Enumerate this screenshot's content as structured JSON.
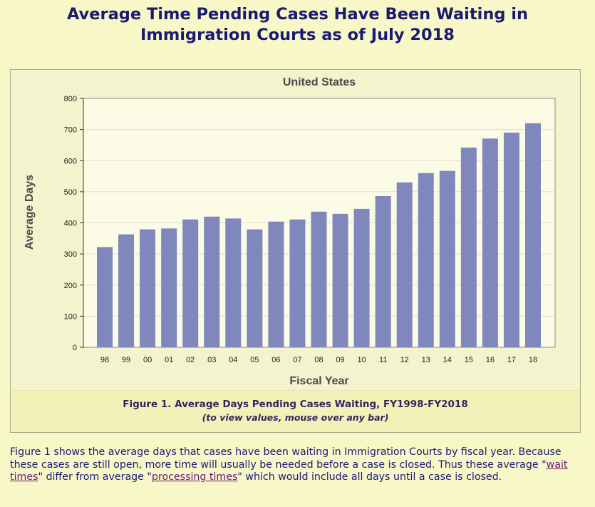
{
  "page": {
    "title_line1": "Average Time Pending Cases Have Been Waiting in",
    "title_line2": "Immigration Courts as of July 2018"
  },
  "caption": {
    "main": "Figure 1. Average Days Pending Cases Waiting, FY1998-FY2018",
    "sub": "(to view values, mouse over any bar)"
  },
  "description": {
    "text_before": "Figure 1 shows the average days that cases have been waiting in Immigration Courts by fiscal year. Because these cases are still open, more time will usually be needed before a case is closed. Thus these average \"",
    "link1": "wait times",
    "text_middle": "\" differ from average \"",
    "link2": "processing times",
    "text_after": "\" which would include all days until a case is closed."
  },
  "colors": {
    "bar": "#7f87bd",
    "plot_bg": "#fcfce6",
    "title": "#1a1a73"
  },
  "chart_data": {
    "type": "bar",
    "title": "United States",
    "xlabel": "Fiscal Year",
    "ylabel": "Average Days",
    "ylim": [
      0,
      800
    ],
    "yticks": [
      0,
      100,
      200,
      300,
      400,
      500,
      600,
      700,
      800
    ],
    "grid": true,
    "categories": [
      "98",
      "99",
      "00",
      "01",
      "02",
      "03",
      "04",
      "05",
      "06",
      "07",
      "08",
      "09",
      "10",
      "11",
      "12",
      "13",
      "14",
      "15",
      "16",
      "17",
      "18"
    ],
    "values": [
      322,
      363,
      379,
      382,
      411,
      420,
      414,
      379,
      404,
      411,
      436,
      429,
      445,
      486,
      530,
      560,
      567,
      642,
      671,
      690,
      720
    ]
  }
}
